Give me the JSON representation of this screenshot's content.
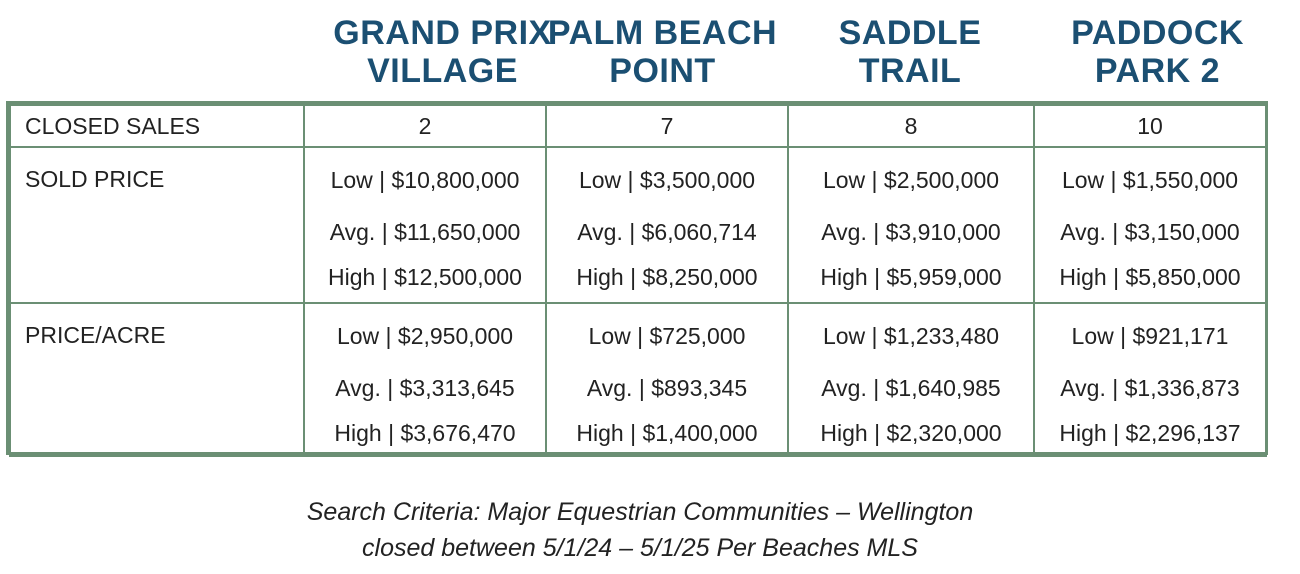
{
  "columns": [
    {
      "line1": "GRAND PRIX",
      "line2": "VILLAGE"
    },
    {
      "line1": "PALM BEACH",
      "line2": "POINT"
    },
    {
      "line1": "SADDLE",
      "line2": "TRAIL"
    },
    {
      "line1": "PADDOCK",
      "line2": "PARK 2"
    }
  ],
  "rows": {
    "closed_sales": {
      "label": "CLOSED SALES",
      "values": [
        "2",
        "7",
        "8",
        "10"
      ]
    },
    "sold_price": {
      "label": "SOLD PRICE",
      "values": [
        [
          "Low | $10,800,000",
          "Avg. | $11,650,000",
          "High | $12,500,000"
        ],
        [
          "Low | $3,500,000",
          "Avg. | $6,060,714",
          "High | $8,250,000"
        ],
        [
          "Low | $2,500,000",
          "Avg. | $3,910,000",
          "High | $5,959,000"
        ],
        [
          "Low | $1,550,000",
          "Avg. | $3,150,000",
          "High | $5,850,000"
        ]
      ]
    },
    "price_acre": {
      "label": "PRICE/ACRE",
      "values": [
        [
          "Low | $2,950,000",
          "Avg. | $3,313,645",
          "High | $3,676,470"
        ],
        [
          "Low | $725,000",
          "Avg. | $893,345",
          "High | $1,400,000"
        ],
        [
          "Low | $1,233,480",
          "Avg. | $1,640,985",
          "High | $2,320,000"
        ],
        [
          "Low | $921,171",
          "Avg. | $1,336,873",
          "High | $2,296,137"
        ]
      ]
    }
  },
  "footer": {
    "line1": "Search Criteria: Major Equestrian Communities – Wellington",
    "line2": "closed between 5/1/24 – 5/1/25 Per Beaches MLS"
  },
  "colors": {
    "header_text": "#1b4f72",
    "border": "#6b8f74"
  }
}
